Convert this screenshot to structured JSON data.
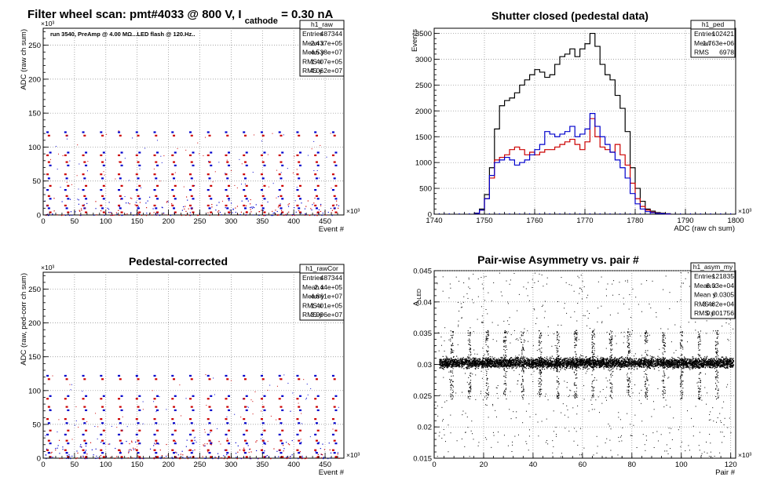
{
  "colors": {
    "black": "#000000",
    "red": "#cc0000",
    "blue": "#0000cc",
    "grid": "#888888"
  },
  "chart_data": [
    {
      "id": "raw",
      "type": "scatter",
      "title_main": "Filter wheel scan: pmt#4033 @   800 V, I",
      "title_sub": "cathode",
      "title_tail": " = 0.30 nA",
      "annotation": "run 3540, PreAmp @ 4.00 MΩ...LED flash @  120.Hz..",
      "xlabel": "Event #",
      "ylabel": "ADC (raw ch sum)",
      "x_exponent": "×10³",
      "y_exponent": "×10³",
      "xlim": [
        0,
        480
      ],
      "ylim": [
        0,
        275
      ],
      "x_ticks": [
        0,
        50,
        100,
        150,
        200,
        250,
        300,
        350,
        400,
        450
      ],
      "y_ticks": [
        0,
        50,
        100,
        150,
        200,
        250
      ],
      "grid": true,
      "stats_box": {
        "name": "h1_raw",
        "rows": [
          {
            "label": "Entries",
            "value": "487344"
          },
          {
            "label": "Mean x",
            "value": "2.437e+05"
          },
          {
            "label": "Mean y",
            "value": "4.538e+07"
          },
          {
            "label": "RMS x",
            "value": "1.407e+05"
          },
          {
            "label": "RMS y",
            "value": "4.062e+07"
          }
        ]
      },
      "pattern": {
        "period": 28.5,
        "first_x": 7,
        "levels": [
          {
            "y": 122,
            "color": "blue"
          },
          {
            "y": 117,
            "color": "red"
          },
          {
            "y": 92,
            "color": "blue"
          },
          {
            "y": 88,
            "color": "red"
          },
          {
            "y": 78,
            "color": "red"
          },
          {
            "y": 73,
            "color": "blue"
          },
          {
            "y": 60,
            "color": "red"
          },
          {
            "y": 54,
            "color": "blue"
          },
          {
            "y": 43,
            "color": "red"
          },
          {
            "y": 37,
            "color": "blue"
          },
          {
            "y": 28,
            "color": "red"
          },
          {
            "y": 24,
            "color": "blue"
          },
          {
            "y": 14,
            "color": "red"
          },
          {
            "y": 10,
            "color": "blue"
          },
          {
            "y": 4,
            "color": "red"
          }
        ]
      }
    },
    {
      "id": "ped",
      "type": "histogram",
      "title": "Shutter closed (pedestal data)",
      "xlabel": "ADC (raw ch sum)",
      "ylabel": "Events",
      "x_exponent": "×10³",
      "xlim": [
        1740,
        1800
      ],
      "ylim": [
        0,
        3600
      ],
      "x_ticks": [
        1740,
        1750,
        1760,
        1770,
        1780,
        1790,
        1800
      ],
      "y_ticks": [
        0,
        500,
        1000,
        1500,
        2000,
        2500,
        3000,
        3500
      ],
      "grid": true,
      "stats_box": {
        "name": "h1_ped",
        "rows": [
          {
            "label": "Entries",
            "value": "102421"
          },
          {
            "label": "Mean",
            "value": "1.763e+06"
          },
          {
            "label": "RMS",
            "value": "6978"
          }
        ]
      },
      "bin_width": 1,
      "series": [
        {
          "color": "black",
          "x_start": 1748,
          "values": [
            20,
            100,
            380,
            900,
            1650,
            2100,
            2200,
            2250,
            2350,
            2500,
            2600,
            2700,
            2800,
            2750,
            2650,
            2700,
            2900,
            3050,
            3100,
            3200,
            3050,
            3200,
            3300,
            3500,
            3250,
            2900,
            2700,
            2600,
            2300,
            2050,
            1600,
            900,
            500,
            250,
            100,
            60,
            30,
            20,
            10
          ]
        },
        {
          "color": "red",
          "x_start": 1748,
          "values": [
            15,
            80,
            300,
            700,
            1050,
            1100,
            1150,
            1250,
            1300,
            1250,
            1150,
            1200,
            1150,
            1200,
            1250,
            1250,
            1300,
            1350,
            1400,
            1450,
            1350,
            1250,
            1400,
            1850,
            1500,
            1300,
            1250,
            1200,
            1350,
            1150,
            950,
            600,
            300,
            150,
            80,
            40,
            20,
            10,
            5
          ]
        },
        {
          "color": "blue",
          "x_start": 1748,
          "values": [
            15,
            80,
            300,
            750,
            1000,
            1050,
            1100,
            1050,
            950,
            1000,
            1050,
            1150,
            1250,
            1350,
            1600,
            1550,
            1500,
            1550,
            1600,
            1700,
            1500,
            1550,
            1650,
            1950,
            1700,
            1500,
            1350,
            1200,
            1050,
            900,
            700,
            400,
            200,
            100,
            50,
            30,
            15,
            10,
            5
          ]
        }
      ]
    },
    {
      "id": "rawcor",
      "type": "scatter",
      "title": "Pedestal-corrected",
      "xlabel": "Event #",
      "ylabel": "ADC (raw, ped-corr ch sum)",
      "x_exponent": "×10³",
      "y_exponent": "×10³",
      "xlim": [
        0,
        480
      ],
      "ylim": [
        0,
        275
      ],
      "x_ticks": [
        0,
        50,
        100,
        150,
        200,
        250,
        300,
        350,
        400,
        450
      ],
      "y_ticks": [
        0,
        50,
        100,
        150,
        200,
        250
      ],
      "grid": true,
      "stats_box": {
        "name": "h1_rawCor",
        "rows": [
          {
            "label": "Entries",
            "value": "487344"
          },
          {
            "label": "Mean x",
            "value": "2.44e+05"
          },
          {
            "label": "Mean y",
            "value": "4.861e+07"
          },
          {
            "label": "RMS x",
            "value": "1.401e+05"
          },
          {
            "label": "RMS y",
            "value": "3.996e+07"
          }
        ]
      },
      "pattern": {
        "period": 28.5,
        "first_x": 7,
        "levels": [
          {
            "y": 122,
            "color": "blue"
          },
          {
            "y": 117,
            "color": "red"
          },
          {
            "y": 92,
            "color": "blue"
          },
          {
            "y": 88,
            "color": "red"
          },
          {
            "y": 76,
            "color": "red"
          },
          {
            "y": 71,
            "color": "blue"
          },
          {
            "y": 58,
            "color": "red"
          },
          {
            "y": 52,
            "color": "blue"
          },
          {
            "y": 41,
            "color": "red"
          },
          {
            "y": 35,
            "color": "blue"
          },
          {
            "y": 26,
            "color": "red"
          },
          {
            "y": 22,
            "color": "blue"
          },
          {
            "y": 12,
            "color": "red"
          },
          {
            "y": 8,
            "color": "blue"
          },
          {
            "y": 2,
            "color": "red"
          }
        ]
      }
    },
    {
      "id": "asym",
      "type": "scatter",
      "title": "Pair-wise Asymmetry vs. pair #",
      "xlabel": "Pair #",
      "ylabel": "A",
      "ylabel_sub": "LED",
      "x_exponent": "×10³",
      "xlim": [
        0,
        122
      ],
      "ylim": [
        0.015,
        0.045
      ],
      "x_ticks": [
        0,
        20,
        40,
        60,
        80,
        100,
        120
      ],
      "y_ticks": [
        0.015,
        0.02,
        0.025,
        0.03,
        0.035,
        0.04,
        0.045
      ],
      "grid": true,
      "stats_box": {
        "name": "h1_asym_my",
        "rows": [
          {
            "label": "Entries",
            "value": "121835"
          },
          {
            "label": "Mean x",
            "value": "6.03e+04"
          },
          {
            "label": "Mean y",
            "value": "0.0305"
          },
          {
            "label": "RMS x",
            "value": "3.482e+04"
          },
          {
            "label": "RMS y",
            "value": "0.001756"
          }
        ]
      },
      "band": {
        "center": 0.0303,
        "half_width": 0.0012,
        "x_start": 2,
        "x_end": 121,
        "spike_period": 7.15,
        "spike_first_x": 7,
        "spike_low": 0.0245,
        "spike_high": 0.0355
      }
    }
  ]
}
